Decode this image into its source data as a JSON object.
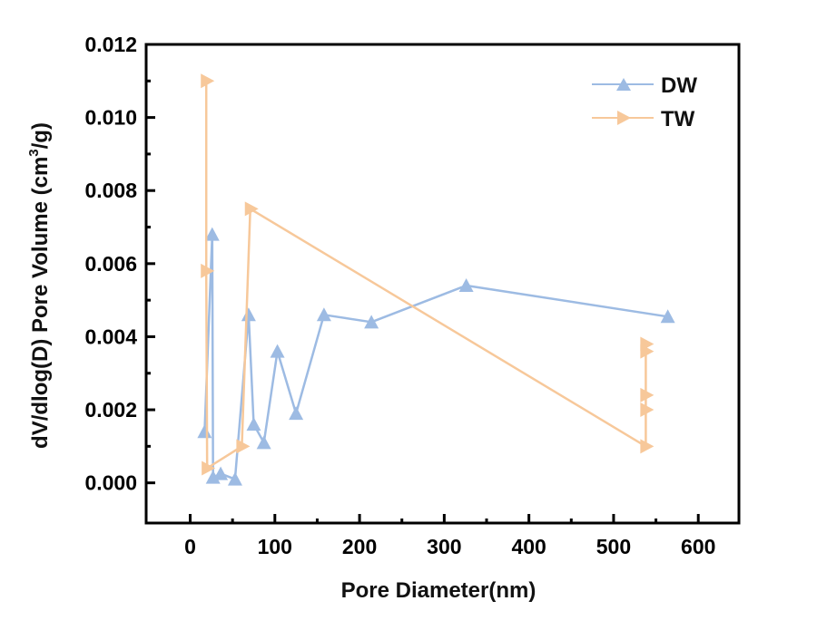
{
  "chart_data": {
    "type": "line",
    "title": "",
    "xlabel": "Pore Diameter(nm)",
    "ylabel_main": "dV/dlog(D) Pore Volume (cm",
    "ylabel_sup": "3",
    "ylabel_end": "/g)",
    "xlim": [
      -52,
      648
    ],
    "ylim": [
      -0.0011,
      0.012
    ],
    "xticks": [
      0,
      100,
      200,
      300,
      400,
      500,
      600
    ],
    "xtick_labels": [
      "0",
      "100",
      "200",
      "300",
      "400",
      "500",
      "600"
    ],
    "xminor": [
      50,
      150,
      250,
      350,
      450,
      550
    ],
    "yticks": [
      0.0,
      0.002,
      0.004,
      0.006,
      0.008,
      0.01,
      0.012
    ],
    "ytick_labels": [
      "0.000",
      "0.002",
      "0.004",
      "0.006",
      "0.008",
      "0.010",
      "0.012"
    ],
    "yminor": [
      0.001,
      0.003,
      0.005,
      0.007,
      0.009,
      0.011
    ],
    "grid": false,
    "legend_position": "top-right",
    "series": [
      {
        "name": "DW",
        "color": "#9dbbe3",
        "marker": "triangle-up",
        "x": [
          17,
          26,
          27,
          36,
          53,
          69,
          75,
          87,
          103,
          125,
          158,
          214,
          326,
          564
        ],
        "y": [
          0.0014,
          0.0068,
          0.00015,
          0.00025,
          0.0001,
          0.0046,
          0.0016,
          0.0011,
          0.0036,
          0.0019,
          0.0046,
          0.0044,
          0.0054,
          0.00455
        ]
      },
      {
        "name": "TW",
        "color": "#f7c89a",
        "marker": "triangle-right",
        "x": [
          19,
          19,
          20,
          61,
          71,
          538,
          538,
          538,
          538,
          538
        ],
        "y": [
          0.011,
          0.0058,
          0.0004,
          0.001,
          0.0075,
          0.001,
          0.002,
          0.0024,
          0.0036,
          0.0038
        ]
      }
    ]
  }
}
